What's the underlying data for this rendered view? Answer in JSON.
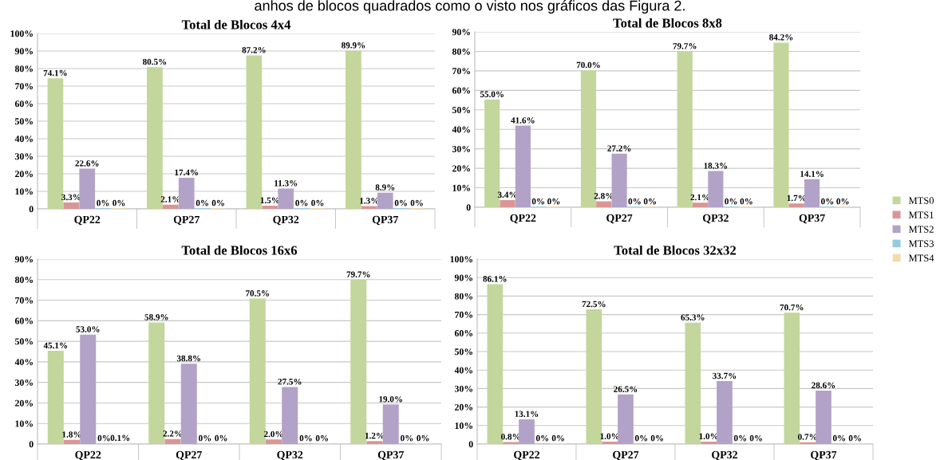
{
  "chart_data": [
    {
      "type": "bar",
      "title": "Total de Blocos 4x4",
      "categories": [
        "QP22",
        "QP27",
        "QP32",
        "QP37"
      ],
      "annotations": [
        "anhos de blocos quadrados como o visto nos gráficos das Figura 2."
      ],
      "ylim": [
        0,
        100
      ],
      "yticks": [
        {
          "value": 0,
          "label": "0"
        },
        {
          "value": 10,
          "label": "10%"
        },
        {
          "value": 20,
          "label": "20%"
        },
        {
          "value": 30,
          "label": "30%"
        },
        {
          "value": 40,
          "label": "40%"
        },
        {
          "value": 50,
          "label": "50%"
        },
        {
          "value": 60,
          "label": "60%"
        },
        {
          "value": 70,
          "label": "70%"
        },
        {
          "value": 80,
          "label": "80%"
        },
        {
          "value": 90,
          "label": "90%"
        },
        {
          "value": 100,
          "label": "100%"
        }
      ],
      "grid": "y",
      "legend": "right",
      "series": [
        {
          "name": "MTS0",
          "color": "#c3d69b",
          "values": [
            74.1,
            80.5,
            87.2,
            89.9
          ],
          "value_labels": [
            "74.1%",
            "80.5%",
            "87.2%",
            "89.9%"
          ]
        },
        {
          "name": "MTS1",
          "color": "#d99694",
          "values": [
            3.3,
            2.1,
            1.5,
            1.3
          ],
          "value_labels": [
            "3.3%",
            "2.1%",
            "1.5%",
            "1.3%"
          ]
        },
        {
          "name": "MTS2",
          "color": "#b3a2c7",
          "values": [
            22.6,
            17.4,
            11.3,
            8.9
          ],
          "value_labels": [
            "22.6%",
            "17.4%",
            "11.3%",
            "8.9%"
          ]
        },
        {
          "name": "MTS3",
          "color": "#93cddd",
          "values": [
            0,
            0,
            0,
            0
          ],
          "value_labels": [
            "0%",
            "0%",
            "0%",
            "0%"
          ]
        },
        {
          "name": "MTS4",
          "color": "#f2dcac",
          "values": [
            0,
            0,
            0,
            0
          ],
          "value_labels": [
            "0%",
            "0%",
            "0%",
            "0%"
          ]
        }
      ]
    },
    {
      "type": "bar",
      "title": "Total de Blocos 8x8",
      "categories": [
        "QP22",
        "QP27",
        "QP32",
        "QP37"
      ],
      "ylim": [
        0,
        90
      ],
      "yticks": [
        {
          "value": 0,
          "label": "0"
        },
        {
          "value": 10,
          "label": "10%"
        },
        {
          "value": 20,
          "label": "20%"
        },
        {
          "value": 30,
          "label": "30%"
        },
        {
          "value": 40,
          "label": "40%"
        },
        {
          "value": 50,
          "label": "50%"
        },
        {
          "value": 60,
          "label": "60%"
        },
        {
          "value": 70,
          "label": "70%"
        },
        {
          "value": 80,
          "label": "80%"
        },
        {
          "value": 90,
          "label": "90%"
        }
      ],
      "grid": "y",
      "series": [
        {
          "color": "#c3d69b",
          "values": [
            55.0,
            70.0,
            79.7,
            84.2
          ],
          "value_labels": [
            "55.0%",
            "70.0%",
            "79.7%",
            "84.2%"
          ]
        },
        {
          "color": "#d99694",
          "values": [
            3.4,
            2.8,
            2.1,
            1.7
          ],
          "value_labels": [
            "3.4%",
            "2.8%",
            "2.1%",
            "1.7%"
          ]
        },
        {
          "color": "#b3a2c7",
          "values": [
            41.6,
            27.2,
            18.3,
            14.1
          ],
          "value_labels": [
            "41.6%",
            "27.2%",
            "18.3%",
            "14.1%"
          ]
        },
        {
          "color": "#93cddd",
          "values": [
            0,
            0,
            0,
            0
          ],
          "value_labels": [
            "0%",
            "0%",
            "0%",
            "0%"
          ]
        },
        {
          "color": "#f2dcac",
          "values": [
            0,
            0,
            0,
            0
          ],
          "value_labels": [
            "0%",
            "0%",
            "0%",
            "0%"
          ]
        }
      ]
    },
    {
      "type": "bar",
      "title": "Total de Blocos 16x6",
      "categories": [
        "QP22",
        "QP27",
        "QP32",
        "QP37"
      ],
      "ylim": [
        0,
        90
      ],
      "yticks": [
        {
          "value": 0,
          "label": "0"
        },
        {
          "value": 10,
          "label": "10%"
        },
        {
          "value": 20,
          "label": "20%"
        },
        {
          "value": 30,
          "label": "30%"
        },
        {
          "value": 40,
          "label": "40%"
        },
        {
          "value": 50,
          "label": "50%"
        },
        {
          "value": 60,
          "label": "60%"
        },
        {
          "value": 70,
          "label": "70%"
        },
        {
          "value": 80,
          "label": "80%"
        },
        {
          "value": 90,
          "label": "90%"
        }
      ],
      "grid": "y",
      "series": [
        {
          "color": "#c3d69b",
          "values": [
            45.1,
            58.9,
            70.5,
            79.7
          ],
          "value_labels": [
            "45.1%",
            "58.9%",
            "70.5%",
            "79.7%"
          ]
        },
        {
          "color": "#d99694",
          "values": [
            1.8,
            2.2,
            2.0,
            1.2
          ],
          "value_labels": [
            "1.8%",
            "2.2%",
            "2.0%",
            "1.2%"
          ]
        },
        {
          "color": "#b3a2c7",
          "values": [
            53.0,
            38.8,
            27.5,
            19.0
          ],
          "value_labels": [
            "53.0%",
            "38.8%",
            "27.5%",
            "19.0%"
          ]
        },
        {
          "color": "#93cddd",
          "values": [
            0,
            0,
            0,
            0
          ],
          "value_labels": [
            "0%",
            "0%",
            "0%",
            "0%"
          ]
        },
        {
          "color": "#f2dcac",
          "values": [
            0.1,
            0,
            0,
            0
          ],
          "value_labels": [
            "0.1%",
            "0%",
            "0%",
            "0%"
          ]
        }
      ]
    },
    {
      "type": "bar",
      "title": "Total de Blocos 32x32",
      "categories": [
        "QP22",
        "QP27",
        "QP32",
        "QP37"
      ],
      "ylim": [
        0,
        100
      ],
      "yticks": [
        {
          "value": 0,
          "label": "0"
        },
        {
          "value": 10,
          "label": "10%"
        },
        {
          "value": 20,
          "label": "20%"
        },
        {
          "value": 30,
          "label": "30%"
        },
        {
          "value": 40,
          "label": "40%"
        },
        {
          "value": 50,
          "label": "50%"
        },
        {
          "value": 60,
          "label": "60%"
        },
        {
          "value": 70,
          "label": "70%"
        },
        {
          "value": 80,
          "label": "80%"
        },
        {
          "value": 90,
          "label": "90%"
        },
        {
          "value": 100,
          "label": "100%"
        }
      ],
      "grid": "y",
      "series": [
        {
          "color": "#c3d69b",
          "values": [
            86.1,
            72.5,
            65.3,
            70.7
          ],
          "value_labels": [
            "86.1%",
            "72.5%",
            "65.3%",
            "70.7%"
          ]
        },
        {
          "color": "#d99694",
          "values": [
            0.8,
            1.0,
            1.0,
            0.7
          ],
          "value_labels": [
            "0.8%",
            "1.0%",
            "1.0%",
            "0.7%"
          ]
        },
        {
          "color": "#b3a2c7",
          "values": [
            13.1,
            26.5,
            33.7,
            28.6
          ],
          "value_labels": [
            "13.1%",
            "26.5%",
            "33.7%",
            "28.6%"
          ]
        },
        {
          "color": "#93cddd",
          "values": [
            0,
            0,
            0,
            0
          ],
          "value_labels": [
            "0%",
            "0%",
            "0%",
            "0%"
          ]
        },
        {
          "color": "#f2dcac",
          "values": [
            0,
            0,
            0,
            0
          ],
          "value_labels": [
            "0%",
            "0%",
            "0%",
            "0%"
          ]
        }
      ]
    }
  ]
}
